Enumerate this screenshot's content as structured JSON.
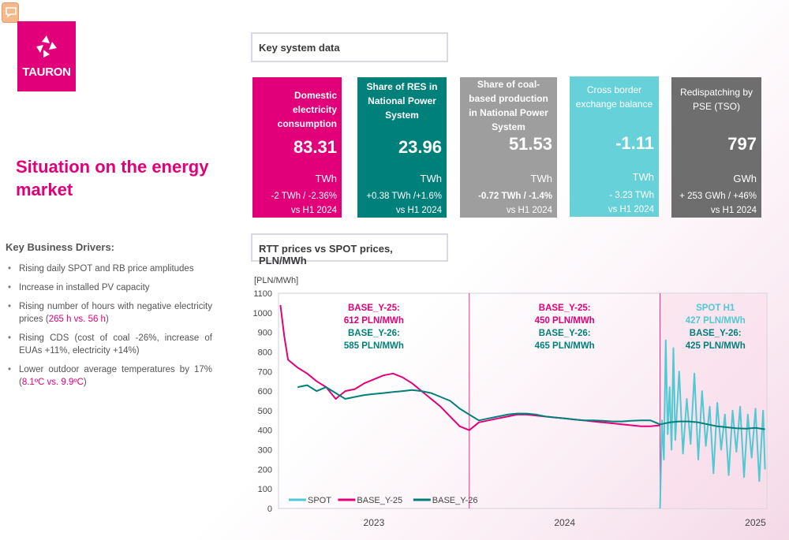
{
  "colors": {
    "brand": "#e2007a",
    "teal": "#00807b",
    "gray": "#9e9e9e",
    "cyan": "#66d1d9",
    "darkgray": "#6e6e6e"
  },
  "brand": {
    "name": "TAURON"
  },
  "title": "Situation on the energy market",
  "drivers": {
    "heading": "Key Business Drivers:",
    "items": [
      {
        "text": "Rising daily SPOT and RB price amplitudes"
      },
      {
        "text": "Increase in installed PV capacity"
      },
      {
        "pre": "Rising number of hours with negative electricity prices (",
        "highlight": "265 h vs. 56 h",
        "post": ")"
      },
      {
        "text": "Rising CDS (cost of coal -26%, increase of EUAs +11%, electricity +14%)"
      },
      {
        "pre": "Lower outdoor average temperatures by 17% (",
        "highlight": "8.1ºC vs. 9.9ºC",
        "post": ")"
      }
    ]
  },
  "key_system": {
    "heading": "Key system data",
    "cards": [
      {
        "label": "Domestic electricity consumption",
        "value": "83.31",
        "unit": "TWh",
        "change": "-2 TWh / -2.36%",
        "vs": "vs H1 2024"
      },
      {
        "label": "Share of RES in National Power System",
        "value": "23.96",
        "unit": "TWh",
        "change": "+0.38 TWh /+1.6%",
        "vs": "vs H1 2024"
      },
      {
        "label": "Share of coal-based production in National Power System",
        "value": "51.53",
        "unit": "TWh",
        "change": "-0.72 TWh / -1.4%",
        "vs": "vs H1 2024"
      },
      {
        "label": "Cross border exchange balance",
        "value": "-1.11",
        "unit": "TWh",
        "change": "- 3.23 TWh",
        "vs": "vs H1 2024"
      },
      {
        "label": "Redispatching by PSE (TSO)",
        "value": "797",
        "unit": "GWh",
        "change": "+ 253 GWh / +46%",
        "vs": "vs H1 2024"
      }
    ]
  },
  "rtt": {
    "heading": "RTT prices vs SPOT prices, PLN/MWh"
  },
  "chart_data": {
    "type": "line",
    "ylabel": "[PLN/MWh]",
    "ylim": [
      0,
      1100
    ],
    "yticks": [
      0,
      100,
      200,
      300,
      400,
      500,
      600,
      700,
      800,
      900,
      1000,
      1100
    ],
    "xlabels": [
      "2023",
      "2024",
      "2025"
    ],
    "xlim": [
      2022.5,
      2025.06
    ],
    "periods": [
      {
        "l1": "BASE_Y-25:",
        "l2": "612 PLN/MWh",
        "l3": "BASE_Y-26:",
        "l4": "585 PLN/MWh"
      },
      {
        "l1": "BASE_Y-25:",
        "l2": "450 PLN/MWh",
        "l3": "BASE_Y-26:",
        "l4": "465 PLN/MWh"
      },
      {
        "l1": "SPOT H1",
        "l2": "427 PLN/MWh",
        "l3": "BASE_Y-26:",
        "l4": "425 PLN/MWh"
      }
    ],
    "dividers": [
      2023.5,
      2024.5
    ],
    "series": [
      {
        "name": "SPOT",
        "color": "#4fc9d2",
        "x": [
          2024.5,
          2024.51,
          2024.52,
          2024.53,
          2024.54,
          2024.55,
          2024.56,
          2024.57,
          2024.58,
          2024.6,
          2024.62,
          2024.64,
          2024.66,
          2024.68,
          2024.7,
          2024.72,
          2024.74,
          2024.76,
          2024.78,
          2024.8,
          2024.82,
          2024.84,
          2024.86,
          2024.88,
          2024.9,
          2024.92,
          2024.94,
          2024.96,
          2024.98,
          2025.0,
          2025.02,
          2025.04,
          2025.05
        ],
        "y": [
          0,
          450,
          250,
          860,
          380,
          620,
          300,
          820,
          350,
          700,
          280,
          560,
          330,
          690,
          250,
          600,
          320,
          520,
          180,
          540,
          300,
          480,
          170,
          500,
          290,
          520,
          160,
          480,
          260,
          510,
          140,
          500,
          200
        ]
      },
      {
        "name": "BASE_Y-25",
        "color": "#e2007a",
        "x": [
          2022.51,
          2022.53,
          2022.55,
          2022.6,
          2022.65,
          2022.7,
          2022.75,
          2022.8,
          2022.85,
          2022.9,
          2022.95,
          2023.0,
          2023.05,
          2023.1,
          2023.15,
          2023.2,
          2023.25,
          2023.3,
          2023.35,
          2023.4,
          2023.45,
          2023.5,
          2023.55,
          2023.6,
          2023.65,
          2023.7,
          2023.75,
          2023.8,
          2023.85,
          2023.9,
          2023.95,
          2024.0,
          2024.05,
          2024.1,
          2024.15,
          2024.2,
          2024.25,
          2024.3,
          2024.35,
          2024.4,
          2024.45,
          2024.5
        ],
        "y": [
          1040,
          880,
          760,
          720,
          690,
          650,
          620,
          560,
          600,
          610,
          640,
          660,
          680,
          690,
          670,
          640,
          600,
          560,
          520,
          470,
          420,
          400,
          440,
          450,
          460,
          470,
          480,
          480,
          475,
          470,
          465,
          460,
          455,
          450,
          445,
          440,
          435,
          430,
          425,
          420,
          420,
          425
        ]
      },
      {
        "name": "BASE_Y-26",
        "color": "#00807b",
        "x": [
          2022.6,
          2022.65,
          2022.7,
          2022.75,
          2022.8,
          2022.85,
          2022.9,
          2022.95,
          2023.0,
          2023.05,
          2023.1,
          2023.15,
          2023.2,
          2023.25,
          2023.3,
          2023.35,
          2023.4,
          2023.45,
          2023.5,
          2023.55,
          2023.6,
          2023.65,
          2023.7,
          2023.75,
          2023.8,
          2023.85,
          2023.9,
          2023.95,
          2024.0,
          2024.05,
          2024.1,
          2024.15,
          2024.2,
          2024.25,
          2024.3,
          2024.35,
          2024.4,
          2024.45,
          2024.5,
          2024.55,
          2024.6,
          2024.65,
          2024.7,
          2024.75,
          2024.8,
          2024.85,
          2024.9,
          2024.95,
          2025.0,
          2025.05
        ],
        "y": [
          620,
          630,
          600,
          620,
          590,
          560,
          570,
          580,
          585,
          590,
          595,
          600,
          605,
          600,
          590,
          570,
          550,
          510,
          480,
          450,
          460,
          470,
          480,
          485,
          485,
          480,
          470,
          465,
          460,
          455,
          450,
          450,
          448,
          445,
          445,
          448,
          450,
          450,
          430,
          440,
          445,
          445,
          440,
          430,
          420,
          415,
          410,
          408,
          412,
          405
        ]
      }
    ]
  }
}
